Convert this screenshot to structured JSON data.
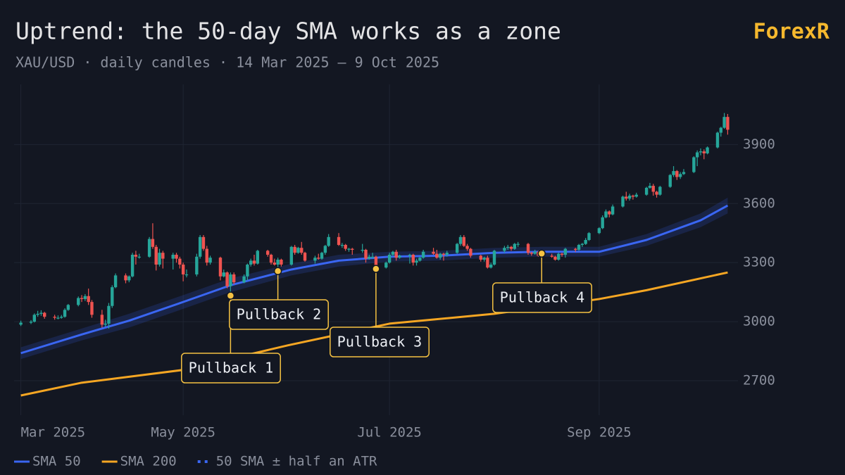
{
  "chart_data": {
    "type": "candlestick",
    "title": "Uptrend: the 50-day SMA works as a zone",
    "subtitle": "XAU/USD · daily candles · 14 Mar 2025 – 9 Oct 2025",
    "brand": "ForexR",
    "up_color": "#26a69a",
    "down_color": "#ef5350",
    "x": [
      "2025-03-14",
      "2025-03-17",
      "2025-03-18",
      "2025-03-19",
      "2025-03-20",
      "2025-03-21",
      "2025-03-24",
      "2025-03-25",
      "2025-03-26",
      "2025-03-27",
      "2025-03-28",
      "2025-03-31",
      "2025-04-01",
      "2025-04-02",
      "2025-04-03",
      "2025-04-04",
      "2025-04-07",
      "2025-04-08",
      "2025-04-09",
      "2025-04-10",
      "2025-04-11",
      "2025-04-14",
      "2025-04-15",
      "2025-04-16",
      "2025-04-17",
      "2025-04-18",
      "2025-04-21",
      "2025-04-22",
      "2025-04-23",
      "2025-04-24",
      "2025-04-25",
      "2025-04-28",
      "2025-04-29",
      "2025-04-30",
      "2025-05-01",
      "2025-05-02",
      "2025-05-05",
      "2025-05-06",
      "2025-05-07",
      "2025-05-08",
      "2025-05-09",
      "2025-05-12",
      "2025-05-13",
      "2025-05-14",
      "2025-05-15",
      "2025-05-16",
      "2025-05-19",
      "2025-05-20",
      "2025-05-21",
      "2025-05-22",
      "2025-05-23",
      "2025-05-26",
      "2025-05-27",
      "2025-05-28",
      "2025-05-29",
      "2025-05-30",
      "2025-06-02",
      "2025-06-03",
      "2025-06-04",
      "2025-06-05",
      "2025-06-06",
      "2025-06-09",
      "2025-06-10",
      "2025-06-11",
      "2025-06-12",
      "2025-06-13",
      "2025-06-16",
      "2025-06-17",
      "2025-06-18",
      "2025-06-19",
      "2025-06-20",
      "2025-06-23",
      "2025-06-24",
      "2025-06-25",
      "2025-06-26",
      "2025-06-27",
      "2025-06-30",
      "2025-07-01",
      "2025-07-02",
      "2025-07-03",
      "2025-07-04",
      "2025-07-07",
      "2025-07-08",
      "2025-07-09",
      "2025-07-10",
      "2025-07-11",
      "2025-07-14",
      "2025-07-15",
      "2025-07-16",
      "2025-07-17",
      "2025-07-18",
      "2025-07-21",
      "2025-07-22",
      "2025-07-23",
      "2025-07-24",
      "2025-07-25",
      "2025-07-28",
      "2025-07-29",
      "2025-07-30",
      "2025-07-31",
      "2025-08-01",
      "2025-08-04",
      "2025-08-05",
      "2025-08-06",
      "2025-08-07",
      "2025-08-08",
      "2025-08-11",
      "2025-08-12",
      "2025-08-13",
      "2025-08-14",
      "2025-08-15",
      "2025-08-18",
      "2025-08-19",
      "2025-08-20",
      "2025-08-21",
      "2025-08-22",
      "2025-08-25",
      "2025-08-26",
      "2025-08-27",
      "2025-08-28",
      "2025-08-29",
      "2025-09-01",
      "2025-09-02",
      "2025-09-03",
      "2025-09-04",
      "2025-09-05",
      "2025-09-08",
      "2025-09-09",
      "2025-09-10",
      "2025-09-11",
      "2025-09-12",
      "2025-09-15",
      "2025-09-16",
      "2025-09-17",
      "2025-09-18",
      "2025-09-19",
      "2025-09-22",
      "2025-09-23",
      "2025-09-24",
      "2025-09-25",
      "2025-09-26",
      "2025-09-29",
      "2025-09-30",
      "2025-10-01",
      "2025-10-02",
      "2025-10-03",
      "2025-10-06",
      "2025-10-07",
      "2025-10-08",
      "2025-10-09"
    ],
    "ohlc": [
      [
        2985,
        3005,
        2978,
        2995
      ],
      [
        2995,
        3008,
        2988,
        3000
      ],
      [
        3000,
        3042,
        2996,
        3035
      ],
      [
        3035,
        3055,
        3025,
        3040
      ],
      [
        3040,
        3058,
        3030,
        3045
      ],
      [
        3045,
        3050,
        3015,
        3025
      ],
      [
        3025,
        3035,
        3010,
        3020
      ],
      [
        3020,
        3032,
        3012,
        3020
      ],
      [
        3020,
        3034,
        3015,
        3025
      ],
      [
        3025,
        3068,
        3020,
        3060
      ],
      [
        3060,
        3090,
        3055,
        3085
      ],
      [
        3085,
        3128,
        3078,
        3120
      ],
      [
        3120,
        3135,
        3100,
        3115
      ],
      [
        3115,
        3140,
        3105,
        3130
      ],
      [
        3130,
        3168,
        3085,
        3100
      ],
      [
        3100,
        3110,
        3020,
        3035
      ],
      [
        3035,
        3060,
        2970,
        2985
      ],
      [
        2985,
        3010,
        2975,
        2990
      ],
      [
        2990,
        3095,
        2965,
        3080
      ],
      [
        3080,
        3185,
        3070,
        3175
      ],
      [
        3175,
        3245,
        3170,
        3235
      ],
      [
        3235,
        3245,
        3195,
        3210
      ],
      [
        3210,
        3235,
        3200,
        3230
      ],
      [
        3230,
        3350,
        3225,
        3340
      ],
      [
        3340,
        3360,
        3290,
        3330
      ],
      [
        3330,
        3345,
        3320,
        3330
      ],
      [
        3330,
        3430,
        3325,
        3420
      ],
      [
        3420,
        3500,
        3370,
        3380
      ],
      [
        3380,
        3390,
        3260,
        3290
      ],
      [
        3290,
        3370,
        3280,
        3350
      ],
      [
        3350,
        3360,
        3270,
        3320
      ],
      [
        3320,
        3350,
        3265,
        3340
      ],
      [
        3340,
        3350,
        3300,
        3320
      ],
      [
        3320,
        3330,
        3270,
        3290
      ],
      [
        3290,
        3300,
        3205,
        3240
      ],
      [
        3240,
        3265,
        3225,
        3240
      ],
      [
        3240,
        3345,
        3230,
        3330
      ],
      [
        3330,
        3440,
        3320,
        3430
      ],
      [
        3430,
        3440,
        3360,
        3370
      ],
      [
        3370,
        3385,
        3285,
        3300
      ],
      [
        3300,
        3335,
        3290,
        3325
      ],
      [
        3325,
        3330,
        3210,
        3230
      ],
      [
        3230,
        3265,
        3225,
        3250
      ],
      [
        3250,
        3255,
        3170,
        3180
      ],
      [
        3180,
        3250,
        3125,
        3240
      ],
      [
        3240,
        3250,
        3190,
        3200
      ],
      [
        3200,
        3240,
        3195,
        3230
      ],
      [
        3230,
        3295,
        3210,
        3290
      ],
      [
        3290,
        3320,
        3280,
        3310
      ],
      [
        3310,
        3340,
        3285,
        3295
      ],
      [
        3295,
        3365,
        3290,
        3360
      ],
      [
        3360,
        3365,
        3330,
        3340
      ],
      [
        3340,
        3345,
        3290,
        3300
      ],
      [
        3300,
        3320,
        3285,
        3290
      ],
      [
        3290,
        3325,
        3255,
        3315
      ],
      [
        3315,
        3320,
        3280,
        3290
      ],
      [
        3290,
        3385,
        3285,
        3380
      ],
      [
        3380,
        3390,
        3340,
        3350
      ],
      [
        3350,
        3380,
        3345,
        3375
      ],
      [
        3375,
        3405,
        3340,
        3350
      ],
      [
        3350,
        3355,
        3305,
        3310
      ],
      [
        3310,
        3335,
        3295,
        3325
      ],
      [
        3325,
        3345,
        3315,
        3320
      ],
      [
        3320,
        3355,
        3315,
        3350
      ],
      [
        3350,
        3390,
        3340,
        3385
      ],
      [
        3385,
        3445,
        3380,
        3430
      ],
      [
        3430,
        3450,
        3385,
        3390
      ],
      [
        3390,
        3400,
        3375,
        3390
      ],
      [
        3390,
        3395,
        3360,
        3370
      ],
      [
        3370,
        3375,
        3355,
        3370
      ],
      [
        3370,
        3375,
        3340,
        3365
      ],
      [
        3365,
        3395,
        3350,
        3365
      ],
      [
        3365,
        3370,
        3300,
        3320
      ],
      [
        3320,
        3340,
        3315,
        3330
      ],
      [
        3330,
        3350,
        3320,
        3330
      ],
      [
        3330,
        3335,
        3268,
        3275
      ],
      [
        3275,
        3305,
        3270,
        3300
      ],
      [
        3300,
        3350,
        3295,
        3340
      ],
      [
        3340,
        3360,
        3330,
        3355
      ],
      [
        3355,
        3365,
        3310,
        3325
      ],
      [
        3325,
        3340,
        3320,
        3335
      ],
      [
        3335,
        3345,
        3295,
        3340
      ],
      [
        3340,
        3345,
        3285,
        3300
      ],
      [
        3300,
        3320,
        3285,
        3310
      ],
      [
        3310,
        3330,
        3305,
        3325
      ],
      [
        3325,
        3365,
        3320,
        3355
      ],
      [
        3355,
        3375,
        3340,
        3345
      ],
      [
        3345,
        3365,
        3320,
        3325
      ],
      [
        3325,
        3350,
        3315,
        3345
      ],
      [
        3345,
        3350,
        3310,
        3340
      ],
      [
        3340,
        3360,
        3330,
        3350
      ],
      [
        3350,
        3400,
        3345,
        3395
      ],
      [
        3395,
        3440,
        3385,
        3430
      ],
      [
        3430,
        3440,
        3380,
        3385
      ],
      [
        3385,
        3395,
        3360,
        3370
      ],
      [
        3370,
        3375,
        3325,
        3335
      ],
      [
        3335,
        3340,
        3305,
        3315
      ],
      [
        3315,
        3330,
        3305,
        3325
      ],
      [
        3325,
        3335,
        3270,
        3275
      ],
      [
        3275,
        3300,
        3270,
        3290
      ],
      [
        3290,
        3365,
        3285,
        3360
      ],
      [
        3360,
        3385,
        3350,
        3375
      ],
      [
        3375,
        3390,
        3365,
        3380
      ],
      [
        3380,
        3385,
        3360,
        3370
      ],
      [
        3370,
        3400,
        3365,
        3395
      ],
      [
        3395,
        3405,
        3380,
        3395
      ],
      [
        3395,
        3400,
        3340,
        3350
      ],
      [
        3350,
        3355,
        3335,
        3345
      ],
      [
        3345,
        3365,
        3340,
        3355
      ],
      [
        3355,
        3360,
        3330,
        3335
      ],
      [
        3335,
        3345,
        3330,
        3335
      ],
      [
        3335,
        3345,
        3325,
        3330
      ],
      [
        3330,
        3335,
        3310,
        3315
      ],
      [
        3315,
        3350,
        3310,
        3345
      ],
      [
        3345,
        3350,
        3330,
        3340
      ],
      [
        3340,
        3375,
        3325,
        3370
      ],
      [
        3370,
        3375,
        3355,
        3365
      ],
      [
        3365,
        3395,
        3360,
        3390
      ],
      [
        3390,
        3400,
        3380,
        3395
      ],
      [
        3395,
        3425,
        3390,
        3415
      ],
      [
        3415,
        3455,
        3410,
        3450
      ],
      [
        3450,
        3480,
        3445,
        3475
      ],
      [
        3475,
        3540,
        3470,
        3530
      ],
      [
        3530,
        3570,
        3525,
        3560
      ],
      [
        3560,
        3565,
        3530,
        3545
      ],
      [
        3545,
        3595,
        3540,
        3585
      ],
      [
        3585,
        3640,
        3580,
        3635
      ],
      [
        3635,
        3660,
        3615,
        3625
      ],
      [
        3625,
        3650,
        3615,
        3640
      ],
      [
        3640,
        3645,
        3620,
        3635
      ],
      [
        3635,
        3655,
        3630,
        3645
      ],
      [
        3645,
        3685,
        3640,
        3680
      ],
      [
        3680,
        3705,
        3675,
        3690
      ],
      [
        3690,
        3700,
        3640,
        3660
      ],
      [
        3660,
        3665,
        3630,
        3645
      ],
      [
        3645,
        3690,
        3640,
        3685
      ],
      [
        3685,
        3750,
        3680,
        3745
      ],
      [
        3745,
        3790,
        3735,
        3765
      ],
      [
        3765,
        3770,
        3720,
        3735
      ],
      [
        3735,
        3760,
        3725,
        3750
      ],
      [
        3750,
        3775,
        3745,
        3760
      ],
      [
        3760,
        3840,
        3755,
        3835
      ],
      [
        3835,
        3870,
        3790,
        3860
      ],
      [
        3860,
        3880,
        3845,
        3865
      ],
      [
        3865,
        3875,
        3825,
        3855
      ],
      [
        3855,
        3890,
        3850,
        3885
      ],
      [
        3885,
        3965,
        3880,
        3960
      ],
      [
        3960,
        3990,
        3940,
        3985
      ],
      [
        3985,
        4060,
        3980,
        4040
      ],
      [
        4040,
        4055,
        3950,
        3975
      ]
    ],
    "lines": [
      {
        "name": "SMA 50",
        "color": "#3a66f2",
        "x": [
          "2025-03-14",
          "2025-04-01",
          "2025-04-15",
          "2025-05-01",
          "2025-05-15",
          "2025-06-02",
          "2025-06-16",
          "2025-07-01",
          "2025-07-16",
          "2025-08-01",
          "2025-08-15",
          "2025-09-01",
          "2025-09-15",
          "2025-10-01",
          "2025-10-09"
        ],
        "values": [
          2840,
          2935,
          3005,
          3100,
          3185,
          3265,
          3310,
          3330,
          3335,
          3350,
          3355,
          3355,
          3415,
          3515,
          3590
        ]
      },
      {
        "name": "SMA 200",
        "color": "#f5a623",
        "x": [
          "2025-03-14",
          "2025-04-01",
          "2025-05-01",
          "2025-06-01",
          "2025-07-01",
          "2025-08-01",
          "2025-09-01",
          "2025-09-15",
          "2025-10-09"
        ],
        "values": [
          2625,
          2690,
          2755,
          2880,
          2990,
          3040,
          3115,
          3160,
          3250
        ]
      }
    ],
    "band": {
      "name": "50 SMA ± half an ATR",
      "color": "#3a66f2",
      "x": [
        "2025-03-14",
        "2025-04-01",
        "2025-04-15",
        "2025-05-01",
        "2025-05-15",
        "2025-06-02",
        "2025-06-16",
        "2025-07-01",
        "2025-07-16",
        "2025-08-01",
        "2025-08-15",
        "2025-09-01",
        "2025-09-15",
        "2025-10-01",
        "2025-10-09"
      ],
      "upper": [
        2870,
        2965,
        3040,
        3135,
        3220,
        3295,
        3340,
        3355,
        3360,
        3375,
        3380,
        3380,
        3445,
        3550,
        3630
      ],
      "lower": [
        2810,
        2905,
        2970,
        3065,
        3150,
        3235,
        3280,
        3305,
        3310,
        3325,
        3330,
        3330,
        3385,
        3480,
        3550
      ]
    },
    "annotations": [
      {
        "label": "Pullback 1",
        "x": "2025-05-15",
        "y": 3132
      },
      {
        "label": "Pullback 2",
        "x": "2025-05-29",
        "y": 3257
      },
      {
        "label": "Pullback 3",
        "x": "2025-06-27",
        "y": 3268
      },
      {
        "label": "Pullback 4",
        "x": "2025-08-15",
        "y": 3346
      }
    ],
    "annotation_color": "#f5c242",
    "xlim": [
      "2025-03-12",
      "2025-10-11"
    ],
    "xticks": [
      {
        "value": "2025-03-14",
        "label": "Mar 2025"
      },
      {
        "value": "2025-05-01",
        "label": "May 2025"
      },
      {
        "value": "2025-07-01",
        "label": "Jul 2025"
      },
      {
        "value": "2025-09-01",
        "label": "Sep 2025"
      }
    ],
    "ylim": [
      2525,
      4205
    ],
    "yticks": [
      2700,
      3000,
      3300,
      3600,
      3900
    ],
    "grid": true
  }
}
